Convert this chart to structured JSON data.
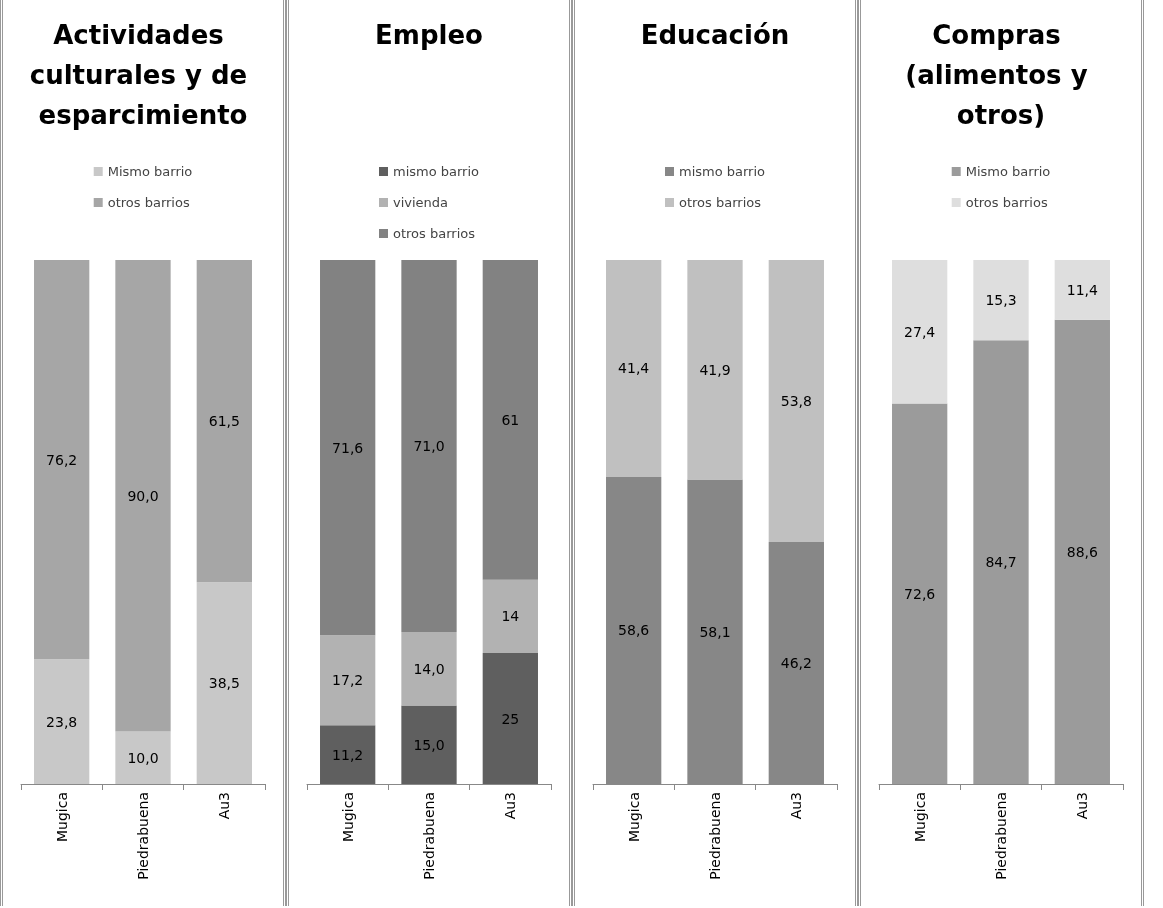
{
  "chart_data": [
    {
      "type": "bar",
      "title": "Actividades culturales y de esparcimiento",
      "categories": [
        "Mugica",
        "Piedrabuena",
        "Au3"
      ],
      "stacked": true,
      "legend": "top",
      "tick_labels": "x",
      "series": [
        {
          "name": "Mismo barrio",
          "color": "#c8c8c8",
          "values": [
            23.8,
            10.0,
            38.5
          ],
          "value_labels": [
            "23,8",
            "10,0",
            "38,5"
          ]
        },
        {
          "name": "otros barrios",
          "color": "#a6a6a6",
          "values": [
            76.2,
            90.0,
            61.5
          ],
          "value_labels": [
            "76,2",
            "90,0",
            "61,5"
          ]
        }
      ]
    },
    {
      "type": "bar",
      "title": "Empleo",
      "categories": [
        "Mugica",
        "Piedrabuena",
        "Au3"
      ],
      "stacked": true,
      "legend": "top",
      "tick_labels": "x",
      "series": [
        {
          "name": "mismo barrio",
          "color": "#5f5f5f",
          "values": [
            11.2,
            15.0,
            25
          ],
          "value_labels": [
            "11,2",
            "15,0",
            "25"
          ]
        },
        {
          "name": "vivienda",
          "color": "#b2b2b2",
          "values": [
            17.2,
            14.0,
            14
          ],
          "value_labels": [
            "17,2",
            "14,0",
            "14"
          ]
        },
        {
          "name": "otros barrios",
          "color": "#828282",
          "values": [
            71.6,
            71.0,
            61
          ],
          "value_labels": [
            "71,6",
            "71,0",
            "61"
          ]
        }
      ]
    },
    {
      "type": "bar",
      "title": "Educación",
      "categories": [
        "Mugica",
        "Piedrabuena",
        "Au3"
      ],
      "stacked": true,
      "legend": "top",
      "tick_labels": "x",
      "series": [
        {
          "name": "mismo barrio",
          "color": "#878787",
          "values": [
            58.6,
            58.1,
            46.2
          ],
          "value_labels": [
            "58,6",
            "58,1",
            "46,2"
          ]
        },
        {
          "name": "otros barrios",
          "color": "#c0c0c0",
          "values": [
            41.4,
            41.9,
            53.8
          ],
          "value_labels": [
            "41,4",
            "41,9",
            "53,8"
          ]
        }
      ]
    },
    {
      "type": "bar",
      "title": "Compras (alimentos y otros)",
      "categories": [
        "Mugica",
        "Piedrabuena",
        "Au3"
      ],
      "stacked": true,
      "legend": "top",
      "tick_labels": "x",
      "series": [
        {
          "name": "Mismo barrio",
          "color": "#9b9b9b",
          "values": [
            72.6,
            84.7,
            88.6
          ],
          "value_labels": [
            "72,6",
            "84,7",
            "88,6"
          ]
        },
        {
          "name": "otros barrios",
          "color": "#dedede",
          "values": [
            27.4,
            15.3,
            11.4
          ],
          "value_labels": [
            "27,4",
            "15,3",
            "11,4"
          ]
        }
      ]
    }
  ]
}
